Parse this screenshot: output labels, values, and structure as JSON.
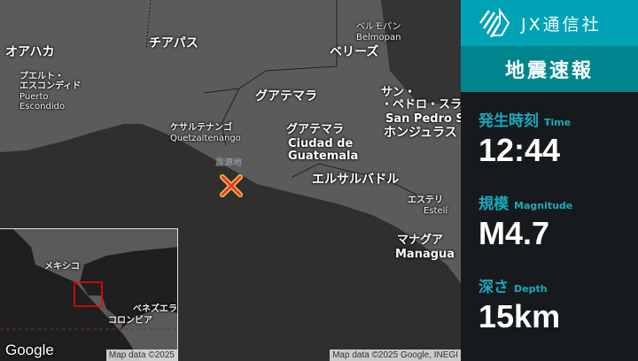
{
  "brand": {
    "name": "JX通信社",
    "logo_icon": "jx-logo-icon"
  },
  "title": "地震速報",
  "info": [
    {
      "label": "発生時刻",
      "label_en": "Time",
      "value": "12:44"
    },
    {
      "label": "規模",
      "label_en": "Magnitude",
      "value": "M4.7"
    },
    {
      "label": "深さ",
      "label_en": "Depth",
      "value": "15km"
    }
  ],
  "map": {
    "epicenter_label": "震源地",
    "labels": {
      "oaxaca": "オアハカ",
      "chiapas": "チアパス",
      "puerto_ja": "プエルト・\nエスコンディド",
      "puerto_en": "Puerto\nEscondido",
      "belmopan_ja": "ベルモパン",
      "belmopan_en": "Belmopan",
      "belize": "ベリーズ",
      "guatemala_country": "グアテマラ",
      "quetz_ja": "ケサルテナンゴ",
      "quetz_en": "Quetzaltenango",
      "guatemala_city_ja": "グアテマラ",
      "guatemala_city_en": "Ciudad de\nGuatemala",
      "sanpedro_ja": "サン・\n・ペドロ・スラ",
      "sanpedro_en": "San Pedro S",
      "honduras": "ホンジュラス",
      "elsalvador": "エルサルバドル",
      "esteli_ja": "エステリ",
      "esteli_en": "Estelí",
      "managua_ja": "マナグア",
      "managua_en": "Managua"
    },
    "attribution": "Map data ©2025 Google, INEGI",
    "inset": {
      "mexico": "メキシコ",
      "venezuela": "ベネズエラ",
      "colombia": "コロンビア",
      "google": "Google",
      "attribution": "Map data ©2025"
    },
    "colors": {
      "epicenter": "#e53935",
      "epicenter_outline": "#f5c242",
      "highlight_box": "#ff0000"
    }
  }
}
